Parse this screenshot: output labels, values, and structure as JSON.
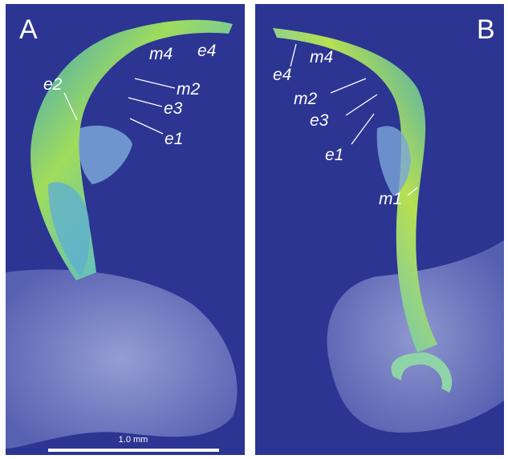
{
  "panels": [
    {
      "letter": "A",
      "labels": {
        "e2": "e2",
        "m4": "m4",
        "e4": "e4",
        "m2": "m2",
        "e3": "e3",
        "e1": "e1"
      }
    },
    {
      "letter": "B",
      "labels": {
        "e4": "e4",
        "m4": "m4",
        "m2": "m2",
        "e3": "e3",
        "e1": "e1",
        "m1": "m1"
      }
    }
  ],
  "scale_bar": "1.0 mm"
}
